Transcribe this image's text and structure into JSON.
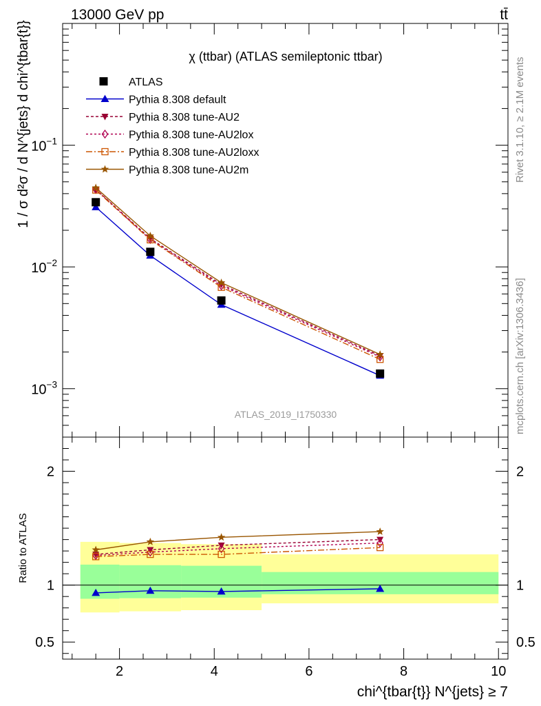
{
  "header": {
    "energy_label": "13000 GeV pp",
    "process_label": "tt̄"
  },
  "side_labels": {
    "rivet": "Rivet 3.1.10, ≥ 2.1M events",
    "mcplots": "mcplots.cern.ch [arXiv:1306.3436]"
  },
  "chart_data": {
    "type": "line",
    "title": "χ (ttbar) (ATLAS semileptonic ttbar)",
    "analysis_id": "ATLAS_2019_I1750330",
    "xlabel": "chi^{tbar{t}} N^{jets} ≥ 7",
    "ylabel": "1 / σ d²σ / d N^{jets} d chi^{tbar{t}}",
    "ratio_ylabel": "Ratio to ATLAS",
    "xlim": [
      0.8,
      10.2
    ],
    "ylim": [
      0.0004,
      1.0
    ],
    "yscale": "log",
    "ratio_ylim": [
      0.35,
      2.3
    ],
    "x_ticks": [
      2,
      4,
      6,
      8,
      10
    ],
    "y_ticks": [
      "10^-3",
      "10^-2",
      "10^-1"
    ],
    "ratio_ticks": [
      0.5,
      1,
      2
    ],
    "legend_position": "top-left",
    "bins": [
      [
        1.0,
        2.0
      ],
      [
        2.0,
        3.3
      ],
      [
        3.3,
        5.0
      ],
      [
        5.0,
        10.0
      ]
    ],
    "x": [
      1.5,
      2.65,
      4.15,
      7.5
    ],
    "data": {
      "name": "ATLAS",
      "values": [
        0.034,
        0.0133,
        0.0053,
        0.00133
      ]
    },
    "band": {
      "inner": [
        [
          0.88,
          1.18
        ],
        [
          0.885,
          1.175
        ],
        [
          0.89,
          1.17
        ],
        [
          0.92,
          1.115
        ]
      ],
      "outer": [
        [
          0.76,
          1.38
        ],
        [
          0.77,
          1.37
        ],
        [
          0.78,
          1.36
        ],
        [
          0.84,
          1.27
        ]
      ]
    },
    "series": [
      {
        "name": "Pythia 8.308 default",
        "color": "#0000cc",
        "dash": "",
        "marker": "triangle-up",
        "values": [
          0.031,
          0.0124,
          0.0049,
          0.00128
        ],
        "ratio": [
          0.932,
          0.951,
          0.944,
          0.968
        ]
      },
      {
        "name": "Pythia 8.308 tune-AU2",
        "color": "#990033",
        "dash": "4,3",
        "marker": "triangle-down",
        "values": [
          0.0434,
          0.0171,
          0.00718,
          0.00186
        ],
        "ratio": [
          1.27,
          1.31,
          1.35,
          1.4
        ]
      },
      {
        "name": "Pythia 8.308 tune-AU2lox",
        "color": "#b00050",
        "dash": "3,3",
        "marker": "diamond-open",
        "values": [
          0.0432,
          0.0168,
          0.007,
          0.00182
        ],
        "ratio": [
          1.26,
          1.29,
          1.32,
          1.37
        ]
      },
      {
        "name": "Pythia 8.308 tune-AU2loxx",
        "color": "#cc5500",
        "dash": "9,3,2,3",
        "marker": "square-open",
        "values": [
          0.0428,
          0.0167,
          0.0068,
          0.00174
        ],
        "ratio": [
          1.25,
          1.27,
          1.27,
          1.33
        ]
      },
      {
        "name": "Pythia 8.308 tune-AU2m",
        "color": "#995500",
        "dash": "",
        "marker": "star",
        "values": [
          0.0447,
          0.018,
          0.00742,
          0.00191
        ],
        "ratio": [
          1.31,
          1.38,
          1.42,
          1.47
        ]
      }
    ]
  }
}
